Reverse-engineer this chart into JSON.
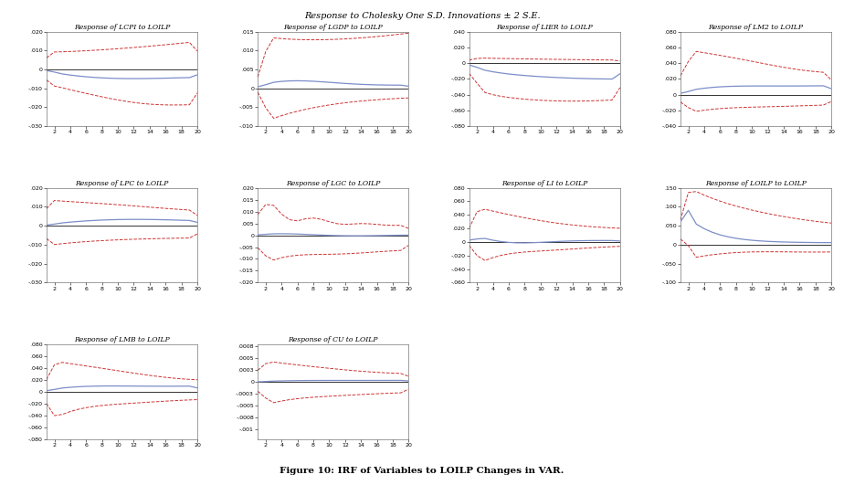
{
  "title": "Response to Cholesky One S.D. Innovations ± 2 S.E.",
  "caption": "Figure 10: IRF of Variables to LOILP Changes in VAR.",
  "subplots": [
    {
      "title": "Response of LCPI to LOILP",
      "ylim": [
        -0.03,
        0.02
      ]
    },
    {
      "title": "Response of LGDP to LOILP",
      "ylim": [
        -0.01,
        0.015
      ]
    },
    {
      "title": "Response of LIER to LOILP",
      "ylim": [
        -0.08,
        0.04
      ]
    },
    {
      "title": "Response of LM2 to LOILP",
      "ylim": [
        -0.04,
        0.08
      ]
    },
    {
      "title": "Response of LPC to LOILP",
      "ylim": [
        -0.03,
        0.02
      ]
    },
    {
      "title": "Response of LGC to LOILP",
      "ylim": [
        -0.02,
        0.02
      ]
    },
    {
      "title": "Response of LI to LOILP",
      "ylim": [
        -0.06,
        0.08
      ]
    },
    {
      "title": "Response of LOILP to LOILP",
      "ylim": [
        -0.1,
        0.15
      ]
    },
    {
      "title": "Response of LMB to LOILP",
      "ylim": [
        -0.08,
        0.08
      ]
    },
    {
      "title": "Response of CU to LOILP",
      "ylim": [
        -0.0012,
        0.0008
      ]
    }
  ],
  "line_color_center": "#7b8ec8",
  "line_color_bounds": "#cc3333",
  "zero_line_color": "#333333",
  "bg_color": "#ffffff",
  "title_fontsize": 7,
  "subtitle_fontsize": 5.5,
  "caption_fontsize": 7.5,
  "tick_fontsize": 4.5,
  "n_periods": 20
}
